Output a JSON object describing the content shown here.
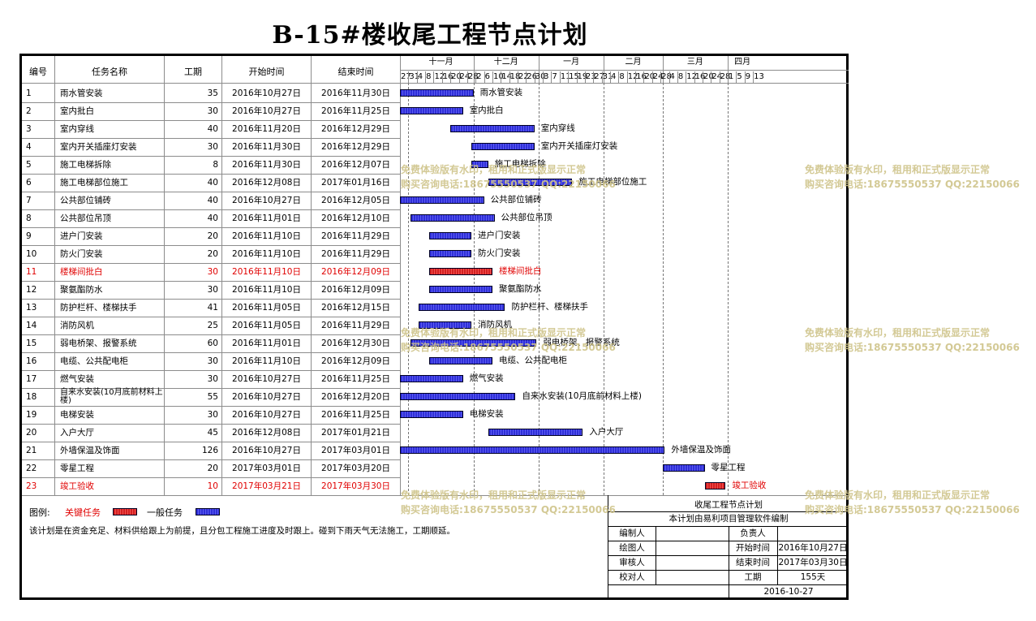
{
  "title": "B-15#楼收尾工程节点计划",
  "headers": {
    "id": "编号",
    "name": "任务名称",
    "duration": "工期",
    "start": "开始时间",
    "end": "结束时间"
  },
  "months": [
    "十一月",
    "十二月",
    "一月",
    "二月",
    "三月",
    "四月"
  ],
  "ticks": [
    "27",
    "31",
    "4",
    "8",
    "12",
    "16",
    "20",
    "24",
    "28",
    "2",
    "6",
    "10",
    "14",
    "18",
    "22",
    "26",
    "30",
    "3",
    "7",
    "11",
    "15",
    "19",
    "23",
    "27",
    "31",
    "4",
    "8",
    "12",
    "16",
    "20",
    "24",
    "28",
    "4",
    "8",
    "12",
    "16",
    "20",
    "24",
    "28",
    "1",
    "5",
    "9",
    "13"
  ],
  "tasks": [
    {
      "id": "1",
      "name": "雨水管安装",
      "duration": "35",
      "start": "2016年10月27日",
      "end": "2016年11月30日",
      "critical": false
    },
    {
      "id": "2",
      "name": "室内批白",
      "duration": "30",
      "start": "2016年10月27日",
      "end": "2016年11月25日",
      "critical": false
    },
    {
      "id": "3",
      "name": "室内穿线",
      "duration": "40",
      "start": "2016年11月20日",
      "end": "2016年12月29日",
      "critical": false
    },
    {
      "id": "4",
      "name": "室内开关插座灯安装",
      "duration": "30",
      "start": "2016年11月30日",
      "end": "2016年12月29日",
      "critical": false
    },
    {
      "id": "5",
      "name": "施工电梯拆除",
      "duration": "8",
      "start": "2016年11月30日",
      "end": "2016年12月07日",
      "critical": false
    },
    {
      "id": "6",
      "name": "施工电梯部位施工",
      "duration": "40",
      "start": "2016年12月08日",
      "end": "2017年01月16日",
      "critical": false
    },
    {
      "id": "7",
      "name": "公共部位铺砖",
      "duration": "40",
      "start": "2016年10月27日",
      "end": "2016年12月05日",
      "critical": false
    },
    {
      "id": "8",
      "name": "公共部位吊顶",
      "duration": "40",
      "start": "2016年11月01日",
      "end": "2016年12月10日",
      "critical": false
    },
    {
      "id": "9",
      "name": "进户门安装",
      "duration": "20",
      "start": "2016年11月10日",
      "end": "2016年11月29日",
      "critical": false
    },
    {
      "id": "10",
      "name": "防火门安装",
      "duration": "20",
      "start": "2016年11月10日",
      "end": "2016年11月29日",
      "critical": false
    },
    {
      "id": "11",
      "name": "楼梯间批白",
      "duration": "30",
      "start": "2016年11月10日",
      "end": "2016年12月09日",
      "critical": true
    },
    {
      "id": "12",
      "name": "聚氨酯防水",
      "duration": "30",
      "start": "2016年11月10日",
      "end": "2016年12月09日",
      "critical": false
    },
    {
      "id": "13",
      "name": "防护栏杆、楼梯扶手",
      "duration": "41",
      "start": "2016年11月05日",
      "end": "2016年12月15日",
      "critical": false
    },
    {
      "id": "14",
      "name": "消防风机",
      "duration": "25",
      "start": "2016年11月05日",
      "end": "2016年11月29日",
      "critical": false
    },
    {
      "id": "15",
      "name": "弱电桥架、报警系统",
      "duration": "60",
      "start": "2016年11月01日",
      "end": "2016年12月30日",
      "critical": false
    },
    {
      "id": "16",
      "name": "电缆、公共配电柜",
      "duration": "30",
      "start": "2016年11月10日",
      "end": "2016年12月09日",
      "critical": false
    },
    {
      "id": "17",
      "name": "燃气安装",
      "duration": "30",
      "start": "2016年10月27日",
      "end": "2016年11月25日",
      "critical": false
    },
    {
      "id": "18",
      "name": "自来水安装(10月底前材料上楼)",
      "duration": "55",
      "start": "2016年10月27日",
      "end": "2016年12月20日",
      "critical": false
    },
    {
      "id": "19",
      "name": "电梯安装",
      "duration": "30",
      "start": "2016年10月27日",
      "end": "2016年11月25日",
      "critical": false
    },
    {
      "id": "20",
      "name": "入户大厅",
      "duration": "45",
      "start": "2016年12月08日",
      "end": "2017年01月21日",
      "critical": false
    },
    {
      "id": "21",
      "name": "外墙保温及饰面",
      "duration": "126",
      "start": "2016年10月27日",
      "end": "2017年03月01日",
      "critical": false
    },
    {
      "id": "22",
      "name": "零星工程",
      "duration": "20",
      "start": "2017年03月01日",
      "end": "2017年03月20日",
      "critical": false
    },
    {
      "id": "23",
      "name": "竣工验收",
      "duration": "10",
      "start": "2017年03月21日",
      "end": "2017年03月30日",
      "critical": true
    }
  ],
  "legend": {
    "label": "图例:",
    "critical": "关键任务",
    "normal": "一般任务",
    "critical_color": "#e02020",
    "normal_color": "#2f2fd8"
  },
  "note": "该计划是在资金充足、材料供给跟上为前提，且分包工程施工进度及时跟上。碰到下雨天气无法施工，工期顺延。",
  "title_block": {
    "name": "收尾工程节点计划",
    "software": "本计划由易利项目管理软件编制",
    "editor": "编制人",
    "responsible": "负责人",
    "drafter": "绘图人",
    "start_label": "开始时间",
    "start_value": "2016年10月27日",
    "reviewer": "审核人",
    "end_label": "结束时间",
    "end_value": "2017年03月30日",
    "checker": "校对人",
    "duration_label": "工期",
    "duration_value": "155天",
    "date": "2016-10-27"
  },
  "watermark": {
    "line1": "免费体验版有水印，租用和正式版显示正常",
    "line2": "购买咨询电话:18675550537 QQ:22150066"
  }
}
